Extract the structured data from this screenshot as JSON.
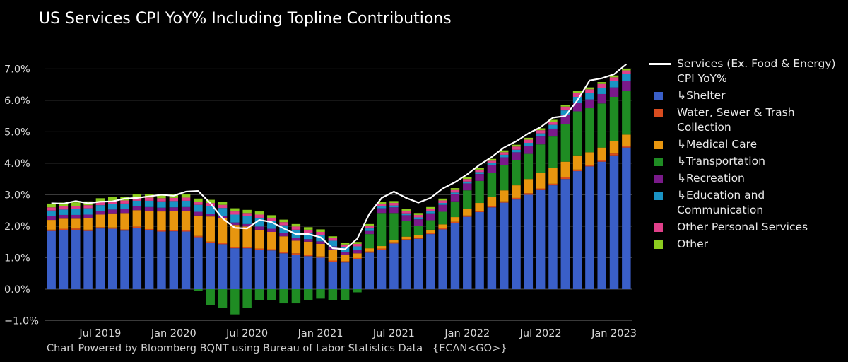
{
  "title": "US Services CPI YoY% Including Topline Contributions",
  "footer": "Chart Powered by Bloomberg BQNT using Bureau of Labor Statistics Data   {ECAN<GO>}",
  "chart_data": {
    "type": "bar",
    "stacked": true,
    "ylim": [
      -1.1,
      7.3
    ],
    "yticks": [
      -1.0,
      0.0,
      1.0,
      2.0,
      3.0,
      4.0,
      5.0,
      6.0,
      7.0
    ],
    "ytick_labels": [
      "−1.0%",
      "0.0%",
      "1.0%",
      "2.0%",
      "3.0%",
      "4.0%",
      "5.0%",
      "6.0%",
      "7.0%"
    ],
    "xtick_labels": [
      {
        "label": "Jul 2019",
        "index": 4
      },
      {
        "label": "Jan 2020",
        "index": 10
      },
      {
        "label": "Jul 2020",
        "index": 16
      },
      {
        "label": "Jan 2021",
        "index": 22
      },
      {
        "label": "Jul 2021",
        "index": 28
      },
      {
        "label": "Jan 2022",
        "index": 34
      },
      {
        "label": "Jul 2022",
        "index": 40
      },
      {
        "label": "Jan 2023",
        "index": 46
      }
    ],
    "categories": [
      "2019-03",
      "2019-04",
      "2019-05",
      "2019-06",
      "2019-07",
      "2019-08",
      "2019-09",
      "2019-10",
      "2019-11",
      "2019-12",
      "2020-01",
      "2020-02",
      "2020-03",
      "2020-04",
      "2020-05",
      "2020-06",
      "2020-07",
      "2020-08",
      "2020-09",
      "2020-10",
      "2020-11",
      "2020-12",
      "2021-01",
      "2021-02",
      "2021-03",
      "2021-04",
      "2021-05",
      "2021-06",
      "2021-07",
      "2021-08",
      "2021-09",
      "2021-10",
      "2021-11",
      "2021-12",
      "2022-01",
      "2022-02",
      "2022-03",
      "2022-04",
      "2022-05",
      "2022-06",
      "2022-07",
      "2022-08",
      "2022-09",
      "2022-10",
      "2022-11",
      "2022-12",
      "2023-01",
      "2023-02"
    ],
    "bar_series": [
      {
        "name": "↳Shelter",
        "color": "#3a5fc8",
        "values": [
          1.85,
          1.88,
          1.89,
          1.85,
          1.93,
          1.92,
          1.86,
          1.95,
          1.87,
          1.83,
          1.84,
          1.83,
          1.65,
          1.47,
          1.43,
          1.3,
          1.3,
          1.25,
          1.23,
          1.14,
          1.1,
          1.05,
          1.0,
          0.87,
          0.85,
          0.95,
          1.16,
          1.25,
          1.45,
          1.55,
          1.6,
          1.75,
          1.9,
          2.1,
          2.3,
          2.45,
          2.6,
          2.75,
          2.85,
          3.0,
          3.15,
          3.3,
          3.5,
          3.75,
          3.9,
          4.05,
          4.25,
          4.5
        ]
      },
      {
        "name": "Water, Sewer & Trash Collection",
        "color": "#d94c1f",
        "values": [
          0.04,
          0.04,
          0.04,
          0.04,
          0.04,
          0.04,
          0.04,
          0.04,
          0.04,
          0.04,
          0.04,
          0.04,
          0.04,
          0.04,
          0.04,
          0.04,
          0.04,
          0.04,
          0.04,
          0.04,
          0.04,
          0.04,
          0.04,
          0.04,
          0.04,
          0.04,
          0.04,
          0.04,
          0.04,
          0.04,
          0.04,
          0.04,
          0.04,
          0.04,
          0.04,
          0.04,
          0.04,
          0.04,
          0.05,
          0.05,
          0.05,
          0.05,
          0.05,
          0.05,
          0.05,
          0.05,
          0.06,
          0.06
        ]
      },
      {
        "name": "↳Medical Care",
        "color": "#e8960f",
        "values": [
          0.31,
          0.32,
          0.31,
          0.36,
          0.4,
          0.45,
          0.52,
          0.52,
          0.58,
          0.6,
          0.6,
          0.62,
          0.65,
          0.8,
          0.78,
          0.7,
          0.65,
          0.6,
          0.55,
          0.5,
          0.4,
          0.42,
          0.4,
          0.35,
          0.2,
          0.15,
          0.1,
          0.08,
          0.08,
          0.08,
          0.08,
          0.1,
          0.12,
          0.15,
          0.2,
          0.25,
          0.3,
          0.35,
          0.4,
          0.45,
          0.5,
          0.5,
          0.5,
          0.45,
          0.4,
          0.4,
          0.4,
          0.35
        ]
      },
      {
        "name": "↳Transportation",
        "color": "#1f8c23",
        "values": [
          0.0,
          0.0,
          0.0,
          0.0,
          0.0,
          0.0,
          0.0,
          0.0,
          0.0,
          0.0,
          0.0,
          0.0,
          -0.05,
          -0.5,
          -0.6,
          -0.8,
          -0.6,
          -0.35,
          -0.35,
          -0.45,
          -0.45,
          -0.35,
          -0.3,
          -0.35,
          -0.35,
          -0.1,
          0.45,
          1.05,
          0.85,
          0.5,
          0.3,
          0.3,
          0.4,
          0.5,
          0.6,
          0.7,
          0.75,
          0.8,
          0.8,
          0.8,
          0.9,
          1.0,
          1.2,
          1.4,
          1.4,
          1.4,
          1.4,
          1.4
        ]
      },
      {
        "name": "↳Recreation",
        "color": "#7a1a8a",
        "values": [
          0.12,
          0.12,
          0.12,
          0.12,
          0.12,
          0.12,
          0.12,
          0.12,
          0.12,
          0.12,
          0.12,
          0.12,
          0.12,
          0.08,
          0.08,
          0.08,
          0.08,
          0.1,
          0.1,
          0.1,
          0.1,
          0.08,
          0.08,
          0.1,
          0.1,
          0.1,
          0.1,
          0.15,
          0.18,
          0.18,
          0.2,
          0.22,
          0.22,
          0.22,
          0.22,
          0.22,
          0.25,
          0.25,
          0.25,
          0.25,
          0.25,
          0.25,
          0.28,
          0.28,
          0.28,
          0.3,
          0.3,
          0.3
        ]
      },
      {
        "name": "↳Education and Communication",
        "color": "#1a93c4",
        "values": [
          0.18,
          0.17,
          0.18,
          0.2,
          0.18,
          0.18,
          0.18,
          0.18,
          0.2,
          0.2,
          0.2,
          0.2,
          0.22,
          0.25,
          0.25,
          0.25,
          0.25,
          0.28,
          0.25,
          0.25,
          0.25,
          0.2,
          0.2,
          0.18,
          0.15,
          0.12,
          0.08,
          0.06,
          0.06,
          0.06,
          0.06,
          0.06,
          0.06,
          0.06,
          0.06,
          0.06,
          0.06,
          0.08,
          0.08,
          0.1,
          0.1,
          0.12,
          0.15,
          0.18,
          0.2,
          0.2,
          0.2,
          0.22
        ]
      },
      {
        "name": "Other Personal Services",
        "color": "#e0408a",
        "values": [
          0.1,
          0.1,
          0.1,
          0.1,
          0.1,
          0.1,
          0.1,
          0.1,
          0.1,
          0.1,
          0.1,
          0.1,
          0.1,
          0.1,
          0.1,
          0.1,
          0.1,
          0.1,
          0.1,
          0.1,
          0.1,
          0.1,
          0.1,
          0.08,
          0.08,
          0.08,
          0.08,
          0.08,
          0.08,
          0.08,
          0.08,
          0.08,
          0.08,
          0.08,
          0.08,
          0.08,
          0.08,
          0.08,
          0.1,
          0.1,
          0.1,
          0.1,
          0.12,
          0.12,
          0.12,
          0.12,
          0.12,
          0.12
        ]
      },
      {
        "name": "Other",
        "color": "#8ccc1f",
        "values": [
          0.12,
          0.12,
          0.12,
          0.12,
          0.12,
          0.12,
          0.12,
          0.12,
          0.12,
          0.12,
          0.12,
          0.12,
          0.1,
          0.1,
          0.1,
          0.1,
          0.1,
          0.1,
          0.08,
          0.08,
          0.08,
          0.08,
          0.08,
          0.06,
          0.06,
          0.06,
          0.06,
          0.06,
          0.06,
          0.06,
          0.06,
          0.06,
          0.06,
          0.06,
          0.06,
          0.06,
          0.06,
          0.06,
          0.06,
          0.06,
          0.06,
          0.06,
          0.06,
          0.06,
          0.06,
          0.06,
          0.06,
          0.06
        ]
      }
    ],
    "line_series": {
      "name": "Services (Ex. Food & Energy) CPI YoY%",
      "color": "#ffffff",
      "values": [
        2.73,
        2.72,
        2.8,
        2.73,
        2.78,
        2.79,
        2.88,
        2.9,
        2.95,
        3.0,
        2.97,
        3.1,
        3.12,
        2.73,
        2.25,
        1.95,
        1.93,
        2.2,
        2.13,
        1.93,
        1.75,
        1.75,
        1.65,
        1.3,
        1.27,
        1.6,
        2.4,
        2.9,
        3.1,
        2.9,
        2.75,
        2.9,
        3.2,
        3.4,
        3.65,
        3.95,
        4.2,
        4.5,
        4.7,
        4.95,
        5.15,
        5.45,
        5.5,
        6.0,
        6.63,
        6.7,
        6.83,
        7.15
      ]
    }
  },
  "legend": [
    {
      "label": "Services (Ex. Food & Energy) CPI YoY%",
      "color": "#ffffff",
      "kind": "line"
    },
    {
      "label": "↳Shelter",
      "color": "#3a5fc8",
      "kind": "box"
    },
    {
      "label": "Water, Sewer & Trash Collection",
      "color": "#d94c1f",
      "kind": "box"
    },
    {
      "label": "↳Medical Care",
      "color": "#e8960f",
      "kind": "box"
    },
    {
      "label": "↳Transportation",
      "color": "#1f8c23",
      "kind": "box"
    },
    {
      "label": "↳Recreation",
      "color": "#7a1a8a",
      "kind": "box"
    },
    {
      "label": "↳Education and Communication",
      "color": "#1a93c4",
      "kind": "box"
    },
    {
      "label": "Other Personal Services",
      "color": "#e0408a",
      "kind": "box"
    },
    {
      "label": "Other",
      "color": "#8ccc1f",
      "kind": "box"
    }
  ]
}
